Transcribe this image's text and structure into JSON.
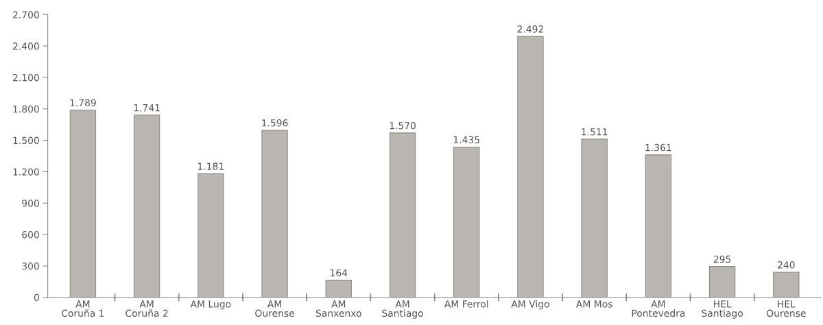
{
  "chart_data": {
    "type": "bar",
    "categories": [
      "AM\nCoruña 1",
      "AM\nCoruña 2",
      "AM Lugo",
      "AM\nOurense",
      "AM\nSanxenxo",
      "AM\nSantiago",
      "AM Ferrol",
      "AM Vigo",
      "AM Mos",
      "AM\nPontevedra",
      "HEL\nSantiago",
      "HEL\nOurense"
    ],
    "values": [
      1789,
      1741,
      1181,
      1596,
      164,
      1570,
      1435,
      2492,
      1511,
      1361,
      295,
      240
    ],
    "value_labels": [
      "1.789",
      "1.741",
      "1.181",
      "1.596",
      "164",
      "1.570",
      "1.435",
      "2.492",
      "1.511",
      "1.361",
      "295",
      "240"
    ],
    "color": "#b9b5b0",
    "ylim": [
      0,
      2700
    ],
    "yticks": [
      0,
      300,
      600,
      900,
      {
        "value": 1200,
        "label": "1.200"
      },
      {
        "value": 1500,
        "label": "1.500"
      },
      {
        "value": 1800,
        "label": "1.800"
      },
      {
        "value": 2100,
        "label": "2.100"
      },
      {
        "value": 2400,
        "label": "2.400"
      },
      {
        "value": 2700,
        "label": "2.700"
      }
    ],
    "grid": false
  }
}
